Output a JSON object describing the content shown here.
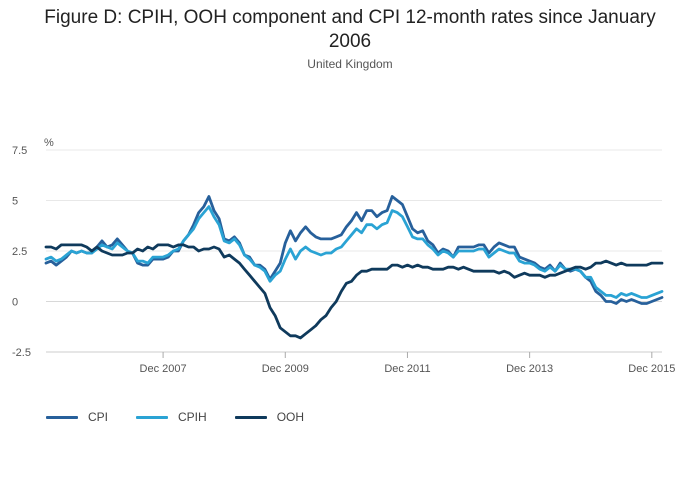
{
  "chart_data": {
    "type": "line",
    "title": "Figure D: CPIH, OOH component and CPI 12-month rates since January 2006",
    "subtitle": "United Kingdom",
    "ylabel": "%",
    "xlabel": "",
    "ylim": [
      -2.5,
      7.5
    ],
    "yticks": [
      "7.5",
      "5",
      "2.5",
      "0",
      "-2.5"
    ],
    "ytick_values": [
      7.5,
      5,
      2.5,
      0,
      -2.5
    ],
    "xticks": [
      "Dec 2007",
      "Dec 2009",
      "Dec 2011",
      "Dec 2013",
      "Dec 2015"
    ],
    "xtick_index": [
      23,
      47,
      71,
      95,
      119
    ],
    "x_start": "Jan 2006",
    "x_end": "Dec 2015",
    "grid": true,
    "legend_position": "bottom-left",
    "series": [
      {
        "name": "CPI",
        "color": "#27609b",
        "values": [
          1.9,
          2.0,
          1.8,
          2.0,
          2.2,
          2.5,
          2.4,
          2.5,
          2.4,
          2.4,
          2.7,
          3.0,
          2.7,
          2.8,
          3.1,
          2.8,
          2.5,
          2.4,
          1.9,
          1.8,
          1.8,
          2.1,
          2.1,
          2.1,
          2.2,
          2.5,
          2.5,
          3.0,
          3.3,
          3.8,
          4.4,
          4.7,
          5.2,
          4.5,
          4.1,
          3.1,
          3.0,
          3.2,
          2.9,
          2.3,
          2.2,
          1.8,
          1.8,
          1.6,
          1.1,
          1.5,
          1.9,
          2.9,
          3.5,
          3.0,
          3.4,
          3.7,
          3.4,
          3.2,
          3.1,
          3.1,
          3.1,
          3.2,
          3.3,
          3.7,
          4.0,
          4.4,
          4.0,
          4.5,
          4.5,
          4.2,
          4.4,
          4.5,
          5.2,
          5.0,
          4.8,
          4.2,
          3.6,
          3.4,
          3.5,
          3.0,
          2.8,
          2.4,
          2.6,
          2.5,
          2.2,
          2.7,
          2.7,
          2.7,
          2.7,
          2.8,
          2.8,
          2.4,
          2.7,
          2.9,
          2.8,
          2.7,
          2.7,
          2.2,
          2.1,
          2.0,
          1.9,
          1.7,
          1.6,
          1.8,
          1.5,
          1.9,
          1.6,
          1.5,
          1.6,
          1.5,
          1.2,
          1.0,
          0.5,
          0.3,
          0.0,
          0.0,
          -0.1,
          0.1,
          0.0,
          0.1,
          0.0,
          -0.1,
          -0.1,
          0.0,
          0.1,
          0.2
        ]
      },
      {
        "name": "CPIH",
        "color": "#2aa3d4",
        "values": [
          2.1,
          2.2,
          2.0,
          2.1,
          2.3,
          2.5,
          2.4,
          2.5,
          2.4,
          2.4,
          2.6,
          2.8,
          2.7,
          2.6,
          2.9,
          2.7,
          2.5,
          2.4,
          2.0,
          2.0,
          1.9,
          2.2,
          2.2,
          2.2,
          2.3,
          2.5,
          2.6,
          3.0,
          3.3,
          3.6,
          4.1,
          4.4,
          4.7,
          4.2,
          3.8,
          3.0,
          2.9,
          3.1,
          2.8,
          2.3,
          2.1,
          1.8,
          1.7,
          1.5,
          1.0,
          1.3,
          1.5,
          2.1,
          2.6,
          2.1,
          2.5,
          2.7,
          2.5,
          2.4,
          2.3,
          2.4,
          2.4,
          2.6,
          2.7,
          3.0,
          3.3,
          3.6,
          3.4,
          3.8,
          3.8,
          3.6,
          3.8,
          3.9,
          4.5,
          4.4,
          4.2,
          3.7,
          3.2,
          3.1,
          3.1,
          2.8,
          2.6,
          2.3,
          2.5,
          2.4,
          2.2,
          2.5,
          2.5,
          2.5,
          2.5,
          2.6,
          2.6,
          2.2,
          2.4,
          2.6,
          2.5,
          2.4,
          2.4,
          2.0,
          1.9,
          1.9,
          1.8,
          1.6,
          1.5,
          1.7,
          1.5,
          1.8,
          1.6,
          1.6,
          1.6,
          1.5,
          1.2,
          1.2,
          0.7,
          0.5,
          0.3,
          0.3,
          0.2,
          0.4,
          0.3,
          0.4,
          0.3,
          0.2,
          0.2,
          0.3,
          0.4,
          0.5
        ]
      },
      {
        "name": "OOH",
        "color": "#0f3a5c",
        "values": [
          2.7,
          2.7,
          2.6,
          2.8,
          2.8,
          2.8,
          2.8,
          2.8,
          2.7,
          2.5,
          2.7,
          2.5,
          2.4,
          2.3,
          2.3,
          2.3,
          2.4,
          2.4,
          2.6,
          2.5,
          2.7,
          2.6,
          2.8,
          2.8,
          2.8,
          2.7,
          2.8,
          2.8,
          2.7,
          2.7,
          2.5,
          2.6,
          2.6,
          2.7,
          2.6,
          2.2,
          2.3,
          2.1,
          1.9,
          1.6,
          1.3,
          1.0,
          0.7,
          0.4,
          -0.3,
          -0.7,
          -1.3,
          -1.5,
          -1.7,
          -1.7,
          -1.8,
          -1.6,
          -1.4,
          -1.2,
          -0.9,
          -0.7,
          -0.3,
          0.0,
          0.5,
          0.9,
          1.0,
          1.3,
          1.5,
          1.5,
          1.6,
          1.6,
          1.6,
          1.6,
          1.8,
          1.8,
          1.7,
          1.8,
          1.7,
          1.8,
          1.7,
          1.7,
          1.6,
          1.6,
          1.6,
          1.7,
          1.7,
          1.6,
          1.7,
          1.6,
          1.5,
          1.5,
          1.5,
          1.5,
          1.5,
          1.4,
          1.5,
          1.4,
          1.2,
          1.3,
          1.4,
          1.3,
          1.3,
          1.3,
          1.2,
          1.3,
          1.3,
          1.4,
          1.5,
          1.6,
          1.7,
          1.7,
          1.6,
          1.7,
          1.9,
          1.9,
          2.0,
          1.9,
          1.8,
          1.9,
          1.8,
          1.8,
          1.8,
          1.8,
          1.8,
          1.9,
          1.9,
          1.9
        ]
      }
    ]
  }
}
